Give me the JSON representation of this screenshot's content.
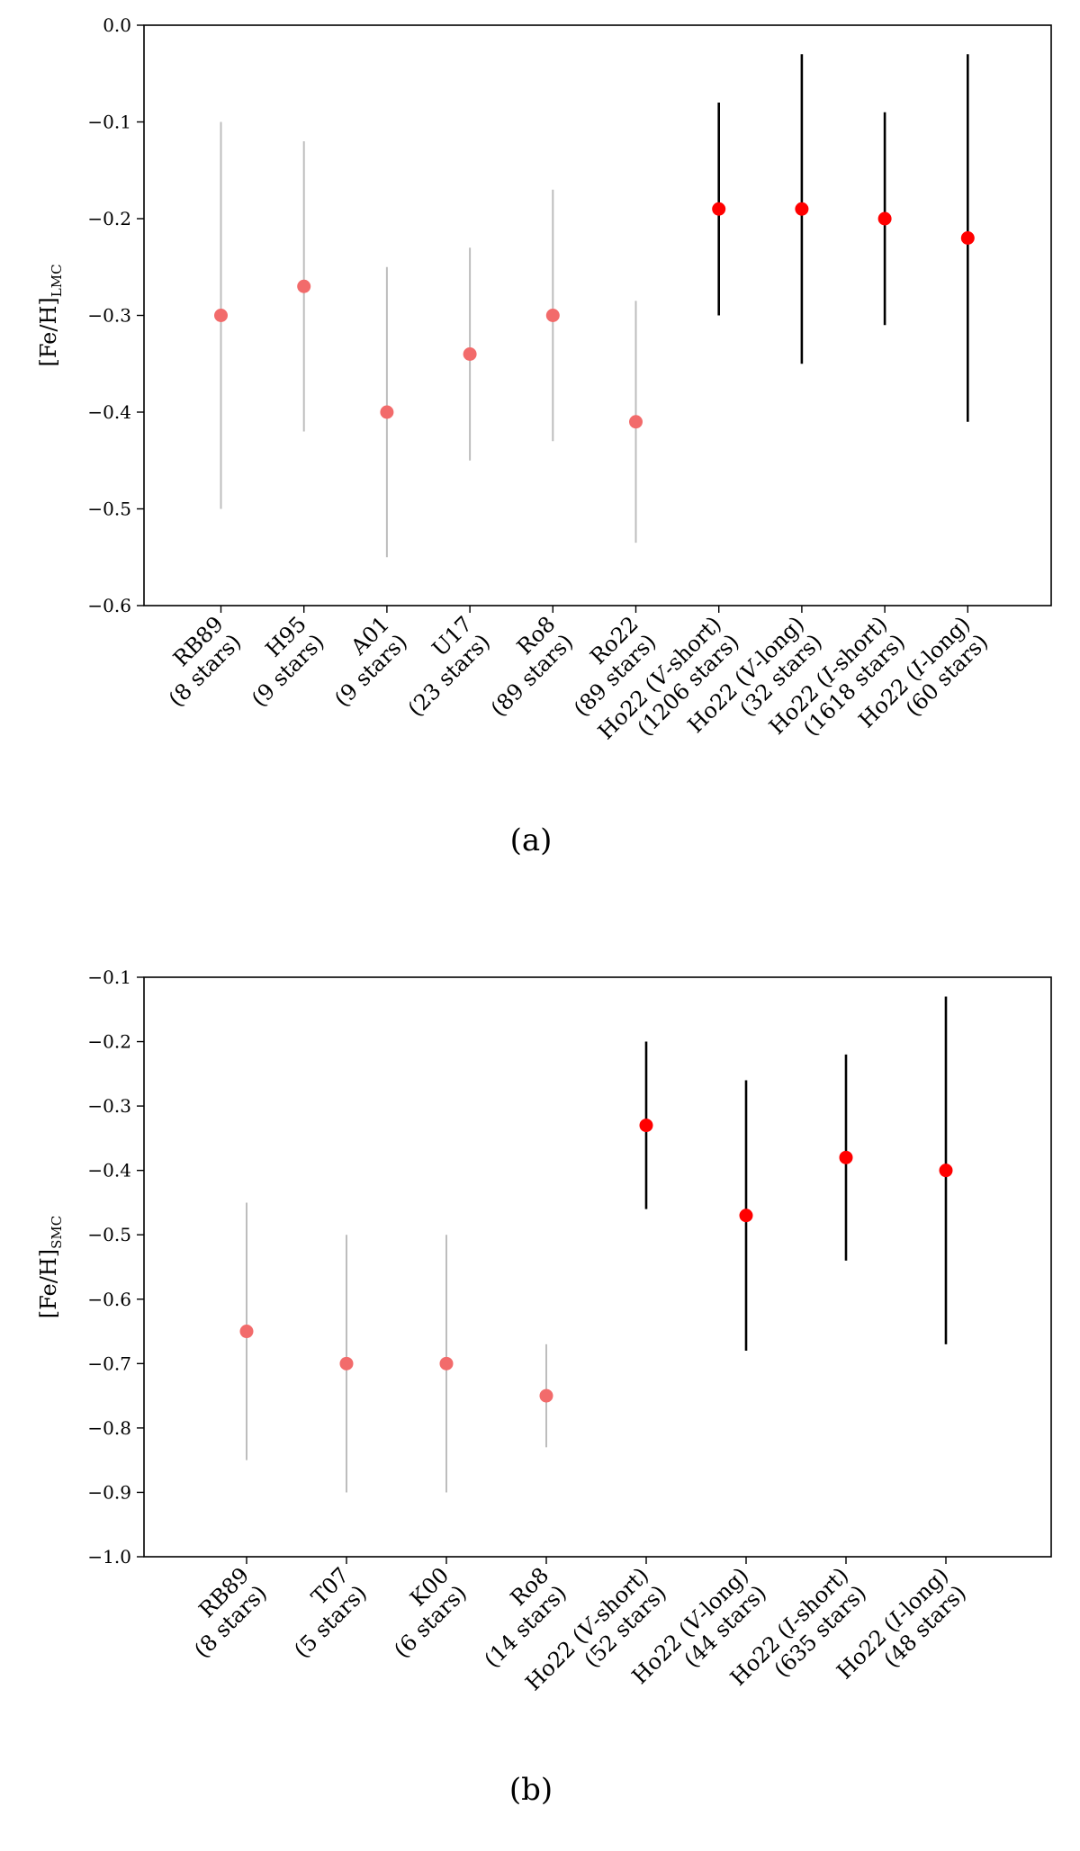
{
  "chart_data": [
    {
      "type": "scatter",
      "variant": "errorbar",
      "panel_label": "(a)",
      "ylabel": "[Fe/H]",
      "ylabel_sub": "LMC",
      "ylim": [
        -0.6,
        0.0
      ],
      "yticks": [
        0.0,
        -0.1,
        -0.2,
        -0.3,
        -0.4,
        -0.5,
        -0.6
      ],
      "ytick_labels": [
        "0.0",
        "−0.1",
        "−0.2",
        "−0.3",
        "−0.4",
        "−0.5",
        "−0.6"
      ],
      "colors": {
        "literature_point": "#f26b6b",
        "literature_bar": "#bdbdbd",
        "this_work_point": "#ff0000",
        "this_work_bar": "#000000"
      },
      "points": [
        {
          "label": "RB89",
          "stars": "(8 stars)",
          "y": -0.3,
          "lo": -0.5,
          "hi": -0.1,
          "group": "literature"
        },
        {
          "label": "H95",
          "stars": "(9 stars)",
          "y": -0.27,
          "lo": -0.42,
          "hi": -0.12,
          "group": "literature"
        },
        {
          "label": "A01",
          "stars": "(9 stars)",
          "y": -0.4,
          "lo": -0.55,
          "hi": -0.25,
          "group": "literature"
        },
        {
          "label": "U17",
          "stars": "(23 stars)",
          "y": -0.34,
          "lo": -0.45,
          "hi": -0.23,
          "group": "literature"
        },
        {
          "label": "Ro8",
          "stars": "(89 stars)",
          "y": -0.3,
          "lo": -0.43,
          "hi": -0.17,
          "group": "literature"
        },
        {
          "label": "Ro22",
          "stars": "(89 stars)",
          "y": -0.41,
          "lo": -0.535,
          "hi": -0.285,
          "group": "literature"
        },
        {
          "label": "Ho22 (V-short)",
          "stars": "(1206 stars)",
          "y": -0.19,
          "lo": -0.3,
          "hi": -0.08,
          "group": "this_work"
        },
        {
          "label": "Ho22 (V-long)",
          "stars": "(32 stars)",
          "y": -0.19,
          "lo": -0.35,
          "hi": -0.03,
          "group": "this_work"
        },
        {
          "label": "Ho22 (I-short)",
          "stars": "(1618 stars)",
          "y": -0.2,
          "lo": -0.31,
          "hi": -0.09,
          "group": "this_work"
        },
        {
          "label": "Ho22 (I-long)",
          "stars": "(60 stars)",
          "y": -0.22,
          "lo": -0.41,
          "hi": -0.03,
          "group": "this_work"
        }
      ]
    },
    {
      "type": "scatter",
      "variant": "errorbar",
      "panel_label": "(b)",
      "ylabel": "[Fe/H]",
      "ylabel_sub": "SMC",
      "ylim": [
        -1.0,
        -0.1
      ],
      "yticks": [
        -0.1,
        -0.2,
        -0.3,
        -0.4,
        -0.5,
        -0.6,
        -0.7,
        -0.8,
        -0.9,
        -1.0
      ],
      "ytick_labels": [
        "−0.1",
        "−0.2",
        "−0.3",
        "−0.4",
        "−0.5",
        "−0.6",
        "−0.7",
        "−0.8",
        "−0.9",
        "−1.0"
      ],
      "colors": {
        "literature_point": "#f26b6b",
        "literature_bar": "#bdbdbd",
        "this_work_point": "#ff0000",
        "this_work_bar": "#000000"
      },
      "points": [
        {
          "label": "RB89",
          "stars": "(8 stars)",
          "y": -0.65,
          "lo": -0.85,
          "hi": -0.45,
          "group": "literature"
        },
        {
          "label": "T07",
          "stars": "(5 stars)",
          "y": -0.7,
          "lo": -0.9,
          "hi": -0.5,
          "group": "literature"
        },
        {
          "label": "K00",
          "stars": "(6 stars)",
          "y": -0.7,
          "lo": -0.9,
          "hi": -0.5,
          "group": "literature"
        },
        {
          "label": "Ro8",
          "stars": "(14 stars)",
          "y": -0.75,
          "lo": -0.83,
          "hi": -0.67,
          "group": "literature"
        },
        {
          "label": "Ho22 (V-short)",
          "stars": "(52 stars)",
          "y": -0.33,
          "lo": -0.46,
          "hi": -0.2,
          "group": "this_work"
        },
        {
          "label": "Ho22 (V-long)",
          "stars": "(44 stars)",
          "y": -0.47,
          "lo": -0.68,
          "hi": -0.26,
          "group": "this_work"
        },
        {
          "label": "Ho22 (I-short)",
          "stars": "(635 stars)",
          "y": -0.38,
          "lo": -0.54,
          "hi": -0.22,
          "group": "this_work"
        },
        {
          "label": "Ho22 (I-long)",
          "stars": "(48 stars)",
          "y": -0.4,
          "lo": -0.67,
          "hi": -0.13,
          "group": "this_work"
        }
      ]
    }
  ]
}
